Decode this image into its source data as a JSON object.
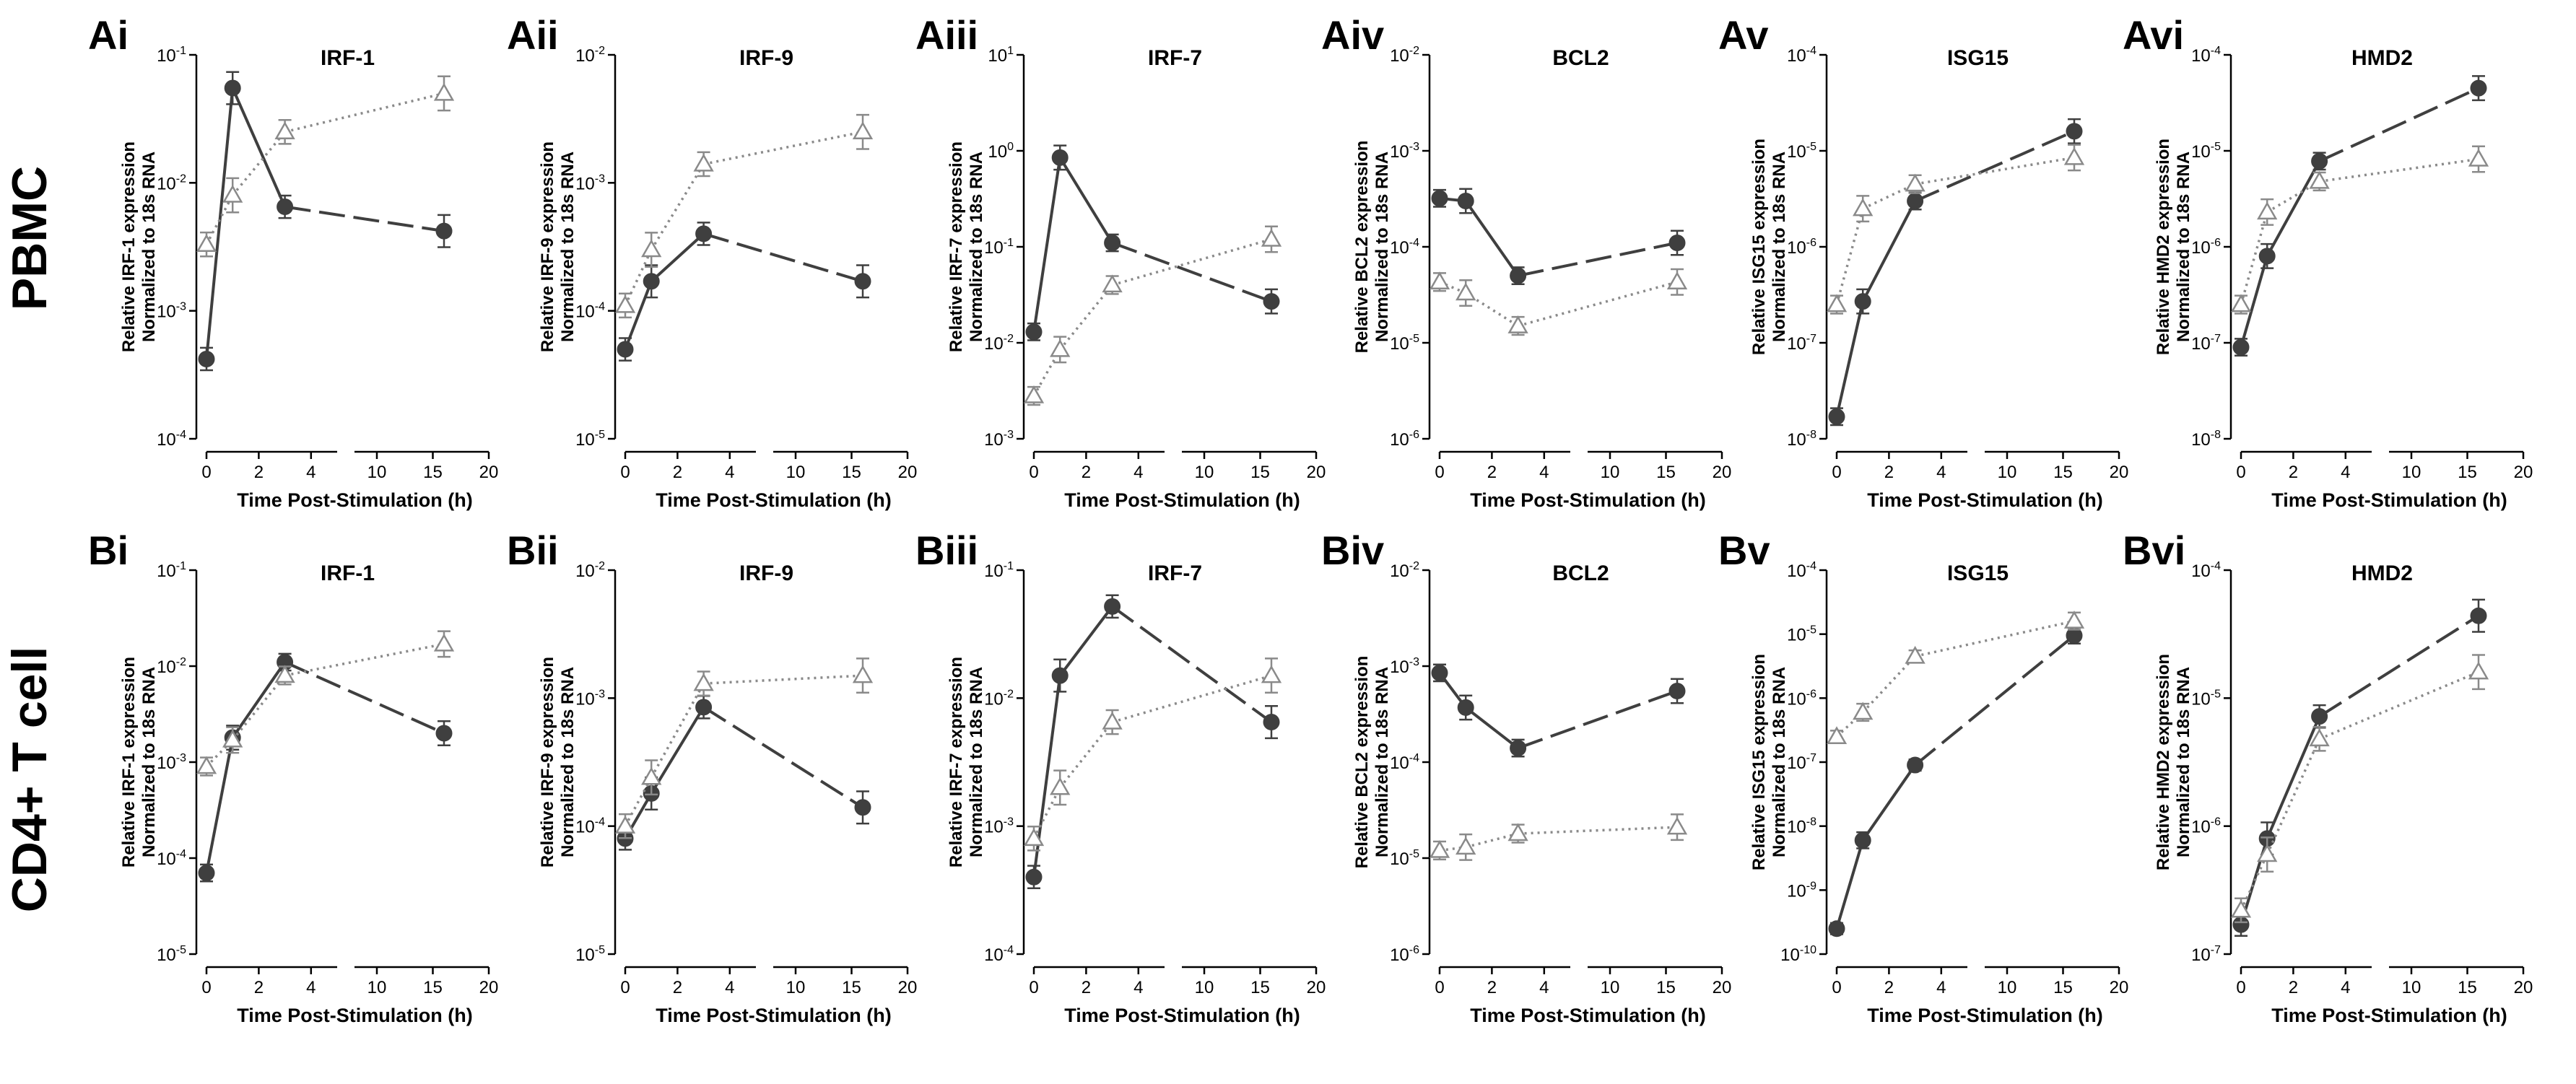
{
  "rows": [
    {
      "label": "PBMC"
    },
    {
      "label": "CD4+ T cell"
    }
  ],
  "series_legend": [
    {
      "name": "solid",
      "color": "#3f3f3f",
      "marker": "circle",
      "line": "solid"
    },
    {
      "name": "dotted",
      "color": "#8a8a8a",
      "marker": "triangle",
      "line": "dotted"
    }
  ],
  "chart_data": [
    {
      "panel": "Ai",
      "row": 0,
      "col": 0,
      "type": "line",
      "title": "IRF-1",
      "ylabel_top": "Relative IRF-1  expression",
      "ylabel_bottom": "Normalized to 18s RNA",
      "xlabel": "Time Post-Stimulation (h)",
      "yscale": "log",
      "ylim_exp": [
        -4,
        -1
      ],
      "ytick_labels": [
        "10-4",
        "10-3",
        "10-2",
        "10-1"
      ],
      "xticks_left": [
        0,
        2,
        4
      ],
      "xticks_right": [
        10,
        15,
        20
      ],
      "x": [
        0,
        1,
        3,
        16
      ],
      "series": [
        {
          "name": "solid",
          "values": [
            0.00042,
            0.055,
            0.0065,
            0.0042
          ]
        },
        {
          "name": "dotted",
          "values": [
            0.0033,
            0.008,
            0.025,
            0.05
          ]
        }
      ]
    },
    {
      "panel": "Aii",
      "row": 0,
      "col": 1,
      "type": "line",
      "title": "IRF-9",
      "ylabel_top": "Relative IRF-9  expression",
      "ylabel_bottom": "Normalized to 18s RNA",
      "xlabel": "Time Post-Stimulation (h)",
      "yscale": "log",
      "ylim_exp": [
        -5,
        -2
      ],
      "ytick_labels": [
        "10-5",
        "10-4",
        "10-3",
        "10-2"
      ],
      "xticks_left": [
        0,
        2,
        4
      ],
      "xticks_right": [
        10,
        15,
        20
      ],
      "x": [
        0,
        1,
        3,
        16
      ],
      "series": [
        {
          "name": "solid",
          "values": [
            5e-05,
            0.00017,
            0.0004,
            0.00017
          ]
        },
        {
          "name": "dotted",
          "values": [
            0.00011,
            0.0003,
            0.0014,
            0.0025
          ]
        }
      ]
    },
    {
      "panel": "Aiii",
      "row": 0,
      "col": 2,
      "type": "line",
      "title": "IRF-7",
      "ylabel_top": "Relative IRF-7  expression",
      "ylabel_bottom": "Normalized to 18s RNA",
      "xlabel": "Time Post-Stimulation (h)",
      "yscale": "log",
      "ylim_exp": [
        -3,
        1
      ],
      "ytick_labels": [
        "10-3",
        "10-2",
        "10-1",
        "100",
        "101"
      ],
      "xticks_left": [
        0,
        2,
        4
      ],
      "xticks_right": [
        10,
        15,
        20
      ],
      "x": [
        0,
        1,
        3,
        16
      ],
      "series": [
        {
          "name": "solid",
          "values": [
            0.013,
            0.85,
            0.11,
            0.027
          ]
        },
        {
          "name": "dotted",
          "values": [
            0.0028,
            0.0085,
            0.04,
            0.12
          ]
        }
      ]
    },
    {
      "panel": "Aiv",
      "row": 0,
      "col": 3,
      "type": "line",
      "title": "BCL2",
      "ylabel_top": "Relative BCL2  expression",
      "ylabel_bottom": "Normalized to 18s RNA",
      "xlabel": "Time Post-Stimulation (h)",
      "yscale": "log",
      "ylim_exp": [
        -6,
        -2
      ],
      "ytick_labels": [
        "10-6",
        "10-5",
        "10-4",
        "10-3",
        "10-2"
      ],
      "xticks_left": [
        0,
        2,
        4
      ],
      "xticks_right": [
        10,
        15,
        20
      ],
      "x": [
        0,
        1,
        3,
        16
      ],
      "series": [
        {
          "name": "solid",
          "values": [
            0.00032,
            0.0003,
            5e-05,
            0.00011
          ]
        },
        {
          "name": "dotted",
          "values": [
            4.3e-05,
            3.3e-05,
            1.5e-05,
            4.3e-05
          ]
        }
      ]
    },
    {
      "panel": "Av",
      "row": 0,
      "col": 4,
      "type": "line",
      "title": "ISG15",
      "ylabel_top": "Relative ISG15 expression",
      "ylabel_bottom": "Normalized to 18s RNA",
      "xlabel": "Time Post-Stimulation (h)",
      "yscale": "log",
      "ylim_exp": [
        -8,
        -4
      ],
      "ytick_labels": [
        "10-8",
        "10-7",
        "10-6",
        "10-5",
        "10-4"
      ],
      "xticks_left": [
        0,
        2,
        4
      ],
      "xticks_right": [
        10,
        15,
        20
      ],
      "x": [
        0,
        1,
        3,
        16
      ],
      "series": [
        {
          "name": "solid",
          "values": [
            1.7e-08,
            2.7e-07,
            3e-06,
            1.6e-05
          ]
        },
        {
          "name": "dotted",
          "values": [
            2.5e-07,
            2.5e-06,
            4.5e-06,
            8.5e-06
          ]
        }
      ]
    },
    {
      "panel": "Avi",
      "row": 0,
      "col": 5,
      "type": "line",
      "title": "HMD2",
      "ylabel_top": "Relative HMD2  expression",
      "ylabel_bottom": "Normalized to 18s RNA",
      "xlabel": "Time Post-Stimulation (h)",
      "yscale": "log",
      "ylim_exp": [
        -8,
        -4
      ],
      "ytick_labels": [
        "10-8",
        "10-7",
        "10-6",
        "10-5",
        "10-4"
      ],
      "xticks_left": [
        0,
        2,
        4
      ],
      "xticks_right": [
        10,
        15,
        20
      ],
      "x": [
        0,
        1,
        3,
        16
      ],
      "series": [
        {
          "name": "solid",
          "values": [
            9e-08,
            8e-07,
            7.8e-06,
            4.5e-05
          ]
        },
        {
          "name": "dotted",
          "values": [
            2.5e-07,
            2.3e-06,
            4.8e-06,
            8.2e-06
          ]
        }
      ]
    },
    {
      "panel": "Bi",
      "row": 1,
      "col": 0,
      "type": "line",
      "title": "IRF-1",
      "ylabel_top": "Relative IRF-1  expression",
      "ylabel_bottom": "Normalized to 18s RNA",
      "xlabel": "Time Post-Stimulation (h)",
      "yscale": "log",
      "ylim_exp": [
        -5,
        -1
      ],
      "ytick_labels": [
        "10-5",
        "10-4",
        "10-3",
        "10-2",
        "10-1"
      ],
      "xticks_left": [
        0,
        2,
        4
      ],
      "xticks_right": [
        10,
        15,
        20
      ],
      "x": [
        0,
        1,
        3,
        16
      ],
      "series": [
        {
          "name": "solid",
          "values": [
            7e-05,
            0.0018,
            0.011,
            0.002
          ]
        },
        {
          "name": "dotted",
          "values": [
            0.0009,
            0.0017,
            0.008,
            0.017
          ]
        }
      ]
    },
    {
      "panel": "Bii",
      "row": 1,
      "col": 1,
      "type": "line",
      "title": "IRF-9",
      "ylabel_top": "Relative IRF-9  expression",
      "ylabel_bottom": "Normalized to 18s RNA",
      "xlabel": "Time Post-Stimulation (h)",
      "yscale": "log",
      "ylim_exp": [
        -5,
        -2
      ],
      "ytick_labels": [
        "10-5",
        "10-4",
        "10-3",
        "10-2"
      ],
      "xticks_left": [
        0,
        2,
        4
      ],
      "xticks_right": [
        10,
        15,
        20
      ],
      "x": [
        0,
        1,
        3,
        16
      ],
      "series": [
        {
          "name": "solid",
          "values": [
            8e-05,
            0.00018,
            0.00085,
            0.00014
          ]
        },
        {
          "name": "dotted",
          "values": [
            0.0001,
            0.00024,
            0.0013,
            0.0015
          ]
        }
      ]
    },
    {
      "panel": "Biii",
      "row": 1,
      "col": 2,
      "type": "line",
      "title": "IRF-7",
      "ylabel_top": "Relative IRF-7  expression",
      "ylabel_bottom": "Normalized to 18s RNA",
      "xlabel": "Time Post-Stimulation (h)",
      "yscale": "log",
      "ylim_exp": [
        -4,
        -1
      ],
      "ytick_labels": [
        "10-4",
        "10-3",
        "10-2",
        "10-1"
      ],
      "xticks_left": [
        0,
        2,
        4
      ],
      "xticks_right": [
        10,
        15,
        20
      ],
      "x": [
        0,
        1,
        3,
        16
      ],
      "series": [
        {
          "name": "solid",
          "values": [
            0.0004,
            0.015,
            0.052,
            0.0065
          ]
        },
        {
          "name": "dotted",
          "values": [
            0.0008,
            0.002,
            0.0065,
            0.015
          ]
        }
      ]
    },
    {
      "panel": "Biv",
      "row": 1,
      "col": 3,
      "type": "line",
      "title": "BCL2",
      "ylabel_top": "Relative BCL2  expression",
      "ylabel_bottom": "Normalized to 18s RNA",
      "xlabel": "Time Post-Stimulation (h)",
      "yscale": "log",
      "ylim_exp": [
        -6,
        -2
      ],
      "ytick_labels": [
        "10-6",
        "10-5",
        "10-4",
        "10-3",
        "10-2"
      ],
      "xticks_left": [
        0,
        2,
        4
      ],
      "xticks_right": [
        10,
        15,
        20
      ],
      "x": [
        0,
        1,
        3,
        16
      ],
      "series": [
        {
          "name": "solid",
          "values": [
            0.00085,
            0.00037,
            0.00014,
            0.00055
          ]
        },
        {
          "name": "dotted",
          "values": [
            1.2e-05,
            1.3e-05,
            1.8e-05,
            2.1e-05
          ]
        }
      ]
    },
    {
      "panel": "Bv",
      "row": 1,
      "col": 4,
      "type": "line",
      "title": "ISG15",
      "ylabel_top": "Relative ISG15 expression",
      "ylabel_bottom": "Normalized to 18s RNA",
      "xlabel": "Time Post-Stimulation (h)",
      "yscale": "log",
      "ylim_exp": [
        -10,
        -4
      ],
      "ytick_labels": [
        "10-10",
        "10-9",
        "10-8",
        "10-7",
        "10-6",
        "10-5",
        "10-4"
      ],
      "xticks_left": [
        0,
        2,
        4
      ],
      "xticks_right": [
        10,
        15,
        20
      ],
      "x": [
        0,
        1,
        3,
        16
      ],
      "series": [
        {
          "name": "solid",
          "values": [
            2.5e-10,
            6e-09,
            9e-08,
            9.5e-06
          ]
        },
        {
          "name": "dotted",
          "values": [
            2.5e-07,
            6e-07,
            4.5e-06,
            1.6e-05
          ]
        }
      ]
    },
    {
      "panel": "Bvi",
      "row": 1,
      "col": 5,
      "type": "line",
      "title": "HMD2",
      "ylabel_top": "Relative HMD2  expression",
      "ylabel_bottom": "Normalized to 18s RNA",
      "xlabel": "Time Post-Stimulation (h)",
      "yscale": "log",
      "ylim_exp": [
        -7,
        -4
      ],
      "ytick_labels": [
        "10-7",
        "10-6",
        "10-5",
        "10-4"
      ],
      "xticks_left": [
        0,
        2,
        4
      ],
      "xticks_right": [
        10,
        15,
        20
      ],
      "x": [
        0,
        1,
        3,
        16
      ],
      "series": [
        {
          "name": "solid",
          "values": [
            1.7e-07,
            8e-07,
            7.2e-06,
            4.4e-05
          ]
        },
        {
          "name": "dotted",
          "values": [
            2.2e-07,
            6e-07,
            4.8e-06,
            1.6e-05
          ]
        }
      ]
    }
  ]
}
